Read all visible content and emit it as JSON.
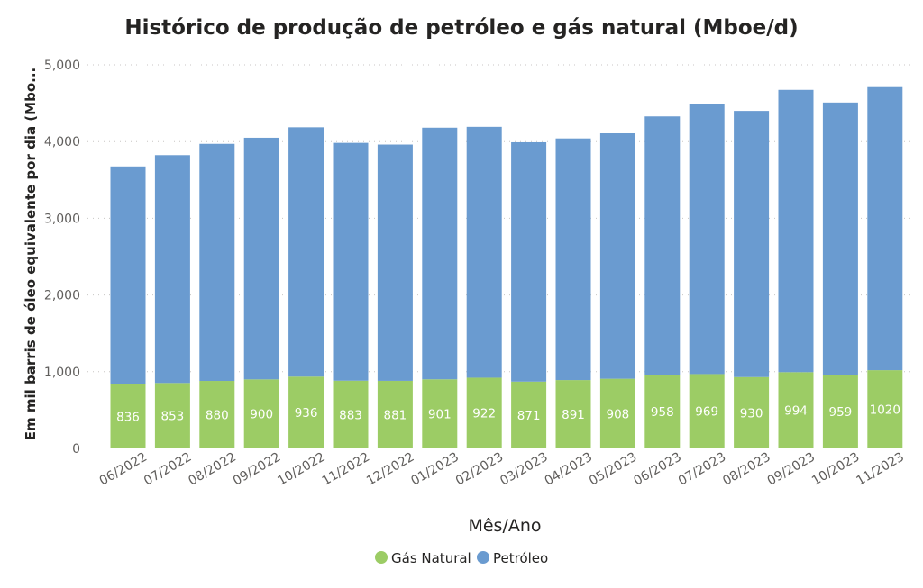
{
  "chart_data": {
    "type": "bar",
    "stacked": true,
    "title": "Histórico de produção de petróleo e gás natural (Mboe/d)",
    "xlabel": "Mês/Ano",
    "ylabel": "Em mil barris de óleo equivalente por dia (Mbo...",
    "ylim": [
      0,
      5000
    ],
    "yticks": [
      "0",
      "1,000",
      "2,000",
      "3,000",
      "4,000",
      "5,000"
    ],
    "grid": true,
    "legend_position": "bottom",
    "categories": [
      "06/2022",
      "07/2022",
      "08/2022",
      "09/2022",
      "10/2022",
      "11/2022",
      "12/2022",
      "01/2023",
      "02/2023",
      "03/2023",
      "04/2023",
      "05/2023",
      "06/2023",
      "07/2023",
      "08/2023",
      "09/2023",
      "10/2023",
      "11/2023"
    ],
    "series": [
      {
        "name": "Gás Natural",
        "color": "#9ccc65",
        "values": [
          836,
          853,
          880,
          900,
          936,
          883,
          881,
          901,
          922,
          871,
          891,
          908,
          958,
          969,
          930,
          994,
          959,
          1020
        ],
        "show_labels": true
      },
      {
        "name": "Petróleo",
        "color": "#6a9bd0",
        "values": [
          2840,
          2970,
          3090,
          3150,
          3250,
          3100,
          3080,
          3280,
          3270,
          3120,
          3150,
          3200,
          3370,
          3520,
          3470,
          3680,
          3550,
          3690
        ],
        "show_labels": false
      }
    ]
  }
}
